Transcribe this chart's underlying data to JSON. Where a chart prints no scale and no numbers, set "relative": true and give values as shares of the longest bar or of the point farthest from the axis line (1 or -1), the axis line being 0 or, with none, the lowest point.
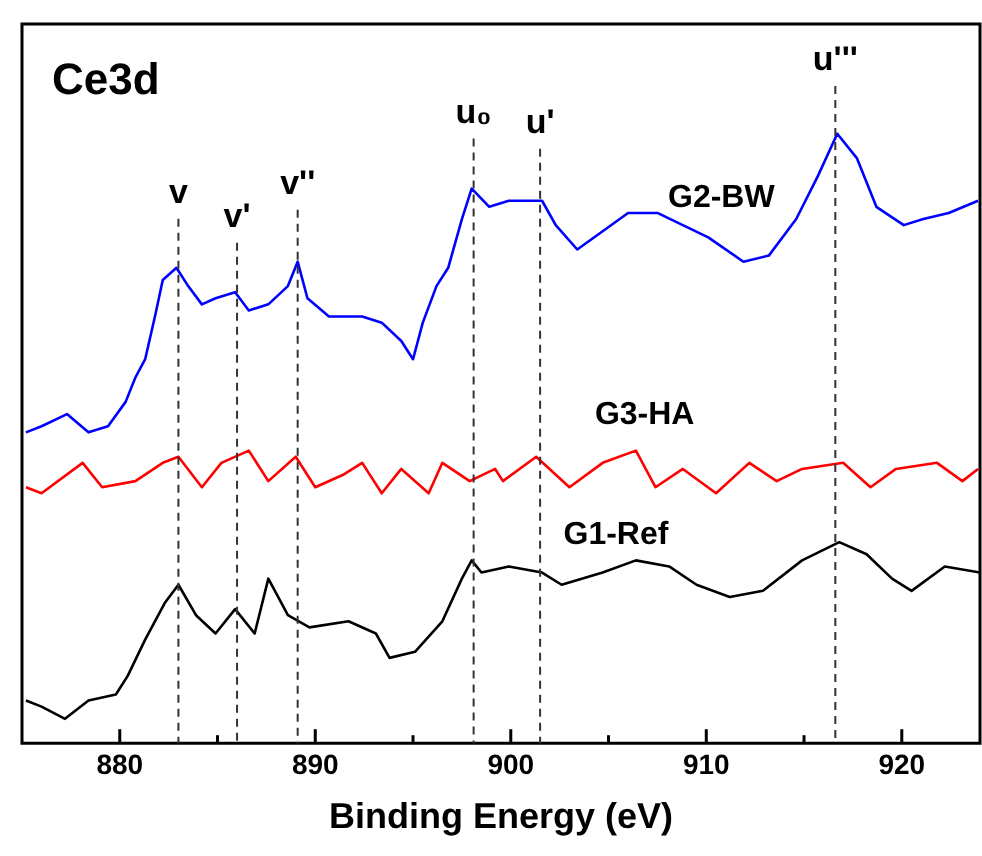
{
  "chart_data": {
    "type": "line",
    "relative": true,
    "xlabel": "Binding Energy (eV)",
    "annotations": [
      "Ce3d"
    ],
    "xlim": [
      875,
      924
    ],
    "xticks": [
      880,
      {
        "value": 885,
        "label": null
      },
      890,
      {
        "value": 895,
        "label": null
      },
      900,
      {
        "value": 905,
        "label": null
      },
      910,
      {
        "value": 915,
        "label": null
      },
      920
    ],
    "legend": false,
    "grid": false,
    "marker": "none",
    "line_style": "solid",
    "ref_lines": [
      {
        "axis": "x",
        "value": 883.0,
        "label": "v",
        "color": "#333333",
        "line_style": "dashed"
      },
      {
        "axis": "x",
        "value": 886.0,
        "label": "v'",
        "color": "#333333",
        "line_style": "dashed"
      },
      {
        "axis": "x",
        "value": 889.1,
        "label": "v''",
        "color": "#333333",
        "line_style": "dashed"
      },
      {
        "axis": "x",
        "value": 898.1,
        "label": "u₀",
        "color": "#333333",
        "line_style": "dashed"
      },
      {
        "axis": "x",
        "value": 901.5,
        "label": "u'",
        "color": "#333333",
        "line_style": "dashed"
      },
      {
        "axis": "x",
        "value": 916.6,
        "label": "u'''",
        "color": "#333333",
        "line_style": "dashed"
      }
    ],
    "series": [
      {
        "name": "G2-BW",
        "color": "#0000ff",
        "x": [
          875.2,
          876.0,
          877.3,
          878.4,
          879.4,
          880.3,
          880.8,
          881.3,
          881.8,
          882.2,
          882.9,
          883.5,
          884.2,
          884.9,
          885.9,
          886.6,
          887.6,
          888.6,
          889.1,
          889.6,
          890.7,
          892.4,
          893.4,
          894.4,
          895.0,
          895.5,
          896.2,
          896.8,
          897.5,
          898.0,
          898.9,
          899.9,
          901.6,
          902.3,
          903.4,
          904.7,
          906.0,
          907.5,
          908.8,
          910.1,
          911.9,
          913.2,
          914.6,
          915.7,
          916.7,
          917.7,
          918.7,
          920.1,
          921.1,
          922.4,
          923.9
        ],
        "values": [
          0.51,
          0.52,
          0.54,
          0.51,
          0.52,
          0.56,
          0.6,
          0.63,
          0.7,
          0.76,
          0.78,
          0.75,
          0.72,
          0.73,
          0.74,
          0.71,
          0.72,
          0.75,
          0.79,
          0.73,
          0.7,
          0.7,
          0.69,
          0.66,
          0.63,
          0.69,
          0.75,
          0.78,
          0.86,
          0.91,
          0.88,
          0.89,
          0.89,
          0.85,
          0.81,
          0.84,
          0.87,
          0.87,
          0.85,
          0.83,
          0.79,
          0.8,
          0.86,
          0.93,
          1,
          0.96,
          0.88,
          0.85,
          0.86,
          0.87,
          0.89
        ]
      },
      {
        "name": "G3-HA",
        "color": "#ff0000",
        "x": [
          875.2,
          876.0,
          878.1,
          879.1,
          880.8,
          882.2,
          883.0,
          884.2,
          885.2,
          886.6,
          887.6,
          889.0,
          890.0,
          891.4,
          892.4,
          893.4,
          894.4,
          895.8,
          896.5,
          897.9,
          899.2,
          899.6,
          901.3,
          903.0,
          904.7,
          906.4,
          907.4,
          908.8,
          910.5,
          912.2,
          913.6,
          914.9,
          917.0,
          918.4,
          919.7,
          921.8,
          923.1,
          923.9
        ],
        "values": [
          0.42,
          0.41,
          0.46,
          0.42,
          0.43,
          0.46,
          0.47,
          0.42,
          0.46,
          0.48,
          0.43,
          0.47,
          0.42,
          0.44,
          0.46,
          0.41,
          0.45,
          0.41,
          0.46,
          0.43,
          0.45,
          0.43,
          0.47,
          0.42,
          0.46,
          0.48,
          0.42,
          0.45,
          0.41,
          0.46,
          0.43,
          0.45,
          0.46,
          0.42,
          0.45,
          0.46,
          0.43,
          0.45
        ]
      },
      {
        "name": "G1-Ref",
        "color": "#000000",
        "x": [
          875.2,
          876.0,
          877.2,
          878.4,
          879.8,
          880.4,
          881.3,
          882.3,
          883.0,
          883.9,
          884.9,
          885.9,
          886.9,
          887.6,
          888.6,
          889.7,
          891.7,
          893.1,
          893.8,
          895.1,
          896.5,
          897.5,
          898.0,
          898.5,
          899.9,
          901.6,
          902.6,
          904.7,
          906.4,
          908.1,
          909.5,
          911.2,
          912.9,
          914.9,
          916.8,
          918.2,
          919.5,
          920.5,
          922.2,
          924.0
        ],
        "values": [
          0.07,
          0.06,
          0.04,
          0.07,
          0.08,
          0.11,
          0.17,
          0.23,
          0.26,
          0.21,
          0.18,
          0.22,
          0.18,
          0.27,
          0.21,
          0.19,
          0.2,
          0.18,
          0.14,
          0.15,
          0.2,
          0.27,
          0.3,
          0.28,
          0.29,
          0.28,
          0.26,
          0.28,
          0.3,
          0.29,
          0.26,
          0.24,
          0.25,
          0.3,
          0.33,
          0.31,
          0.27,
          0.25,
          0.29,
          0.28
        ]
      }
    ]
  }
}
